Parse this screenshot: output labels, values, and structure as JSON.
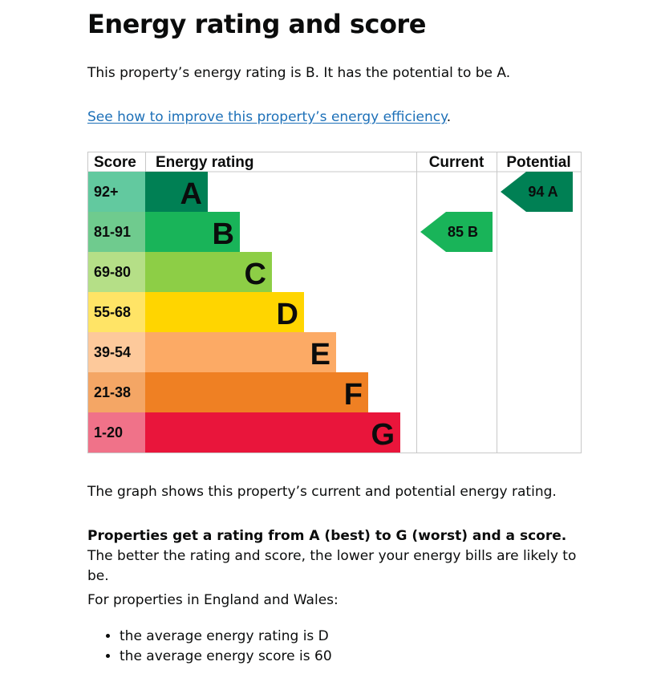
{
  "heading": "Energy rating and score",
  "intro": "This property’s energy rating is B. It has the potential to be A.",
  "improve_link": "See how to improve this property’s energy efficiency",
  "improve_link_suffix": ".",
  "graph_caption": "The graph shows this property’s current and potential energy rating.",
  "ratings_bold": "Properties get a rating from A (best) to G (worst) and a score.",
  "ratings_rest": " The better the rating and score, the lower your energy bills are likely to be.",
  "avg_intro": "For properties in England and Wales:",
  "averages": [
    "the average energy rating is D",
    "the average energy score is 60"
  ],
  "chart_data": {
    "type": "bar",
    "columns": [
      "Score",
      "Energy rating",
      "Current",
      "Potential"
    ],
    "bands": [
      {
        "letter": "A",
        "range": "92+",
        "color": "#008054",
        "range_bg": "#62c99f"
      },
      {
        "letter": "B",
        "range": "81-91",
        "color": "#19b459",
        "range_bg": "#6fcb8e"
      },
      {
        "letter": "C",
        "range": "69-80",
        "color": "#8dce46",
        "range_bg": "#b5df87"
      },
      {
        "letter": "D",
        "range": "55-68",
        "color": "#ffd500",
        "range_bg": "#ffe466"
      },
      {
        "letter": "E",
        "range": "39-54",
        "color": "#fcaa65",
        "range_bg": "#fdc99b"
      },
      {
        "letter": "F",
        "range": "21-38",
        "color": "#ef8023",
        "range_bg": "#f4a665"
      },
      {
        "letter": "G",
        "range": "1-20",
        "color": "#e9153b",
        "range_bg": "#f07289"
      }
    ],
    "current": {
      "score": 85,
      "band": "B",
      "label": "85  B"
    },
    "potential": {
      "score": 94,
      "band": "A",
      "label": "94  A"
    }
  }
}
